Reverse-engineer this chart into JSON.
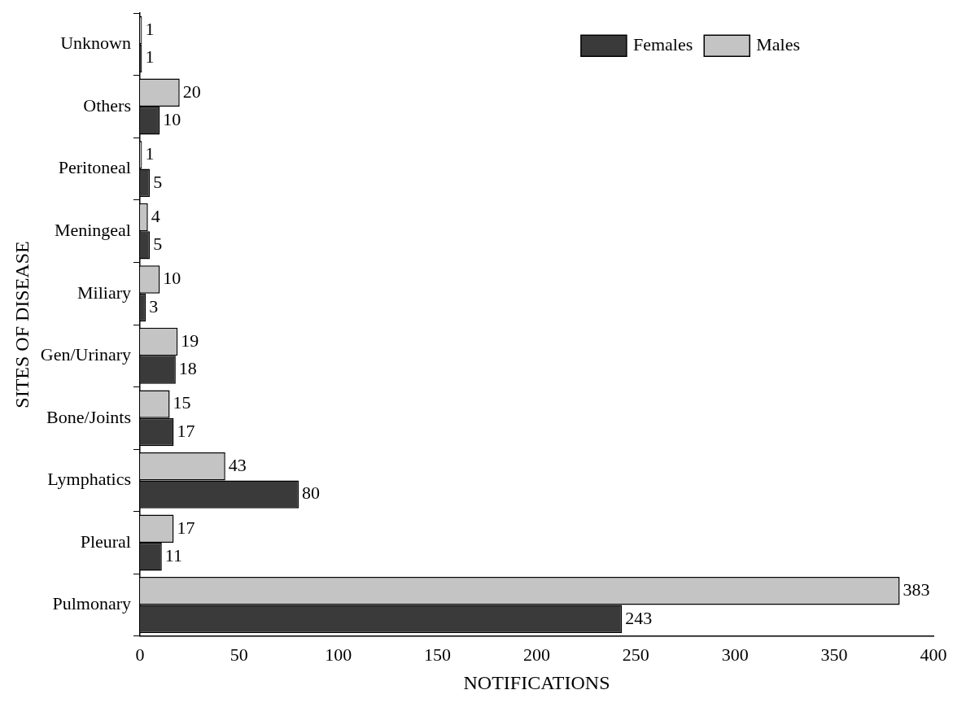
{
  "chart_data": {
    "type": "bar",
    "orientation": "horizontal",
    "xlabel": "NOTIFICATIONS",
    "ylabel": "SITES OF DISEASE",
    "categories": [
      "Unknown",
      "Others",
      "Peritoneal",
      "Meningeal",
      "Miliary",
      "Gen/Urinary",
      "Bone/Joints",
      "Lymphatics",
      "Pleural",
      "Pulmonary"
    ],
    "series": [
      {
        "name": "Females",
        "color": "#3a3a3a",
        "values": [
          1,
          10,
          5,
          5,
          3,
          18,
          17,
          80,
          11,
          243
        ]
      },
      {
        "name": "Males",
        "color": "#c4c4c4",
        "values": [
          1,
          20,
          1,
          4,
          10,
          19,
          15,
          43,
          17,
          383
        ]
      }
    ],
    "xlim": [
      0,
      400
    ],
    "xticks": [
      0,
      50,
      100,
      150,
      200,
      250,
      300,
      350,
      400
    ],
    "grid": false,
    "legend": "top right",
    "data_labels": true
  }
}
